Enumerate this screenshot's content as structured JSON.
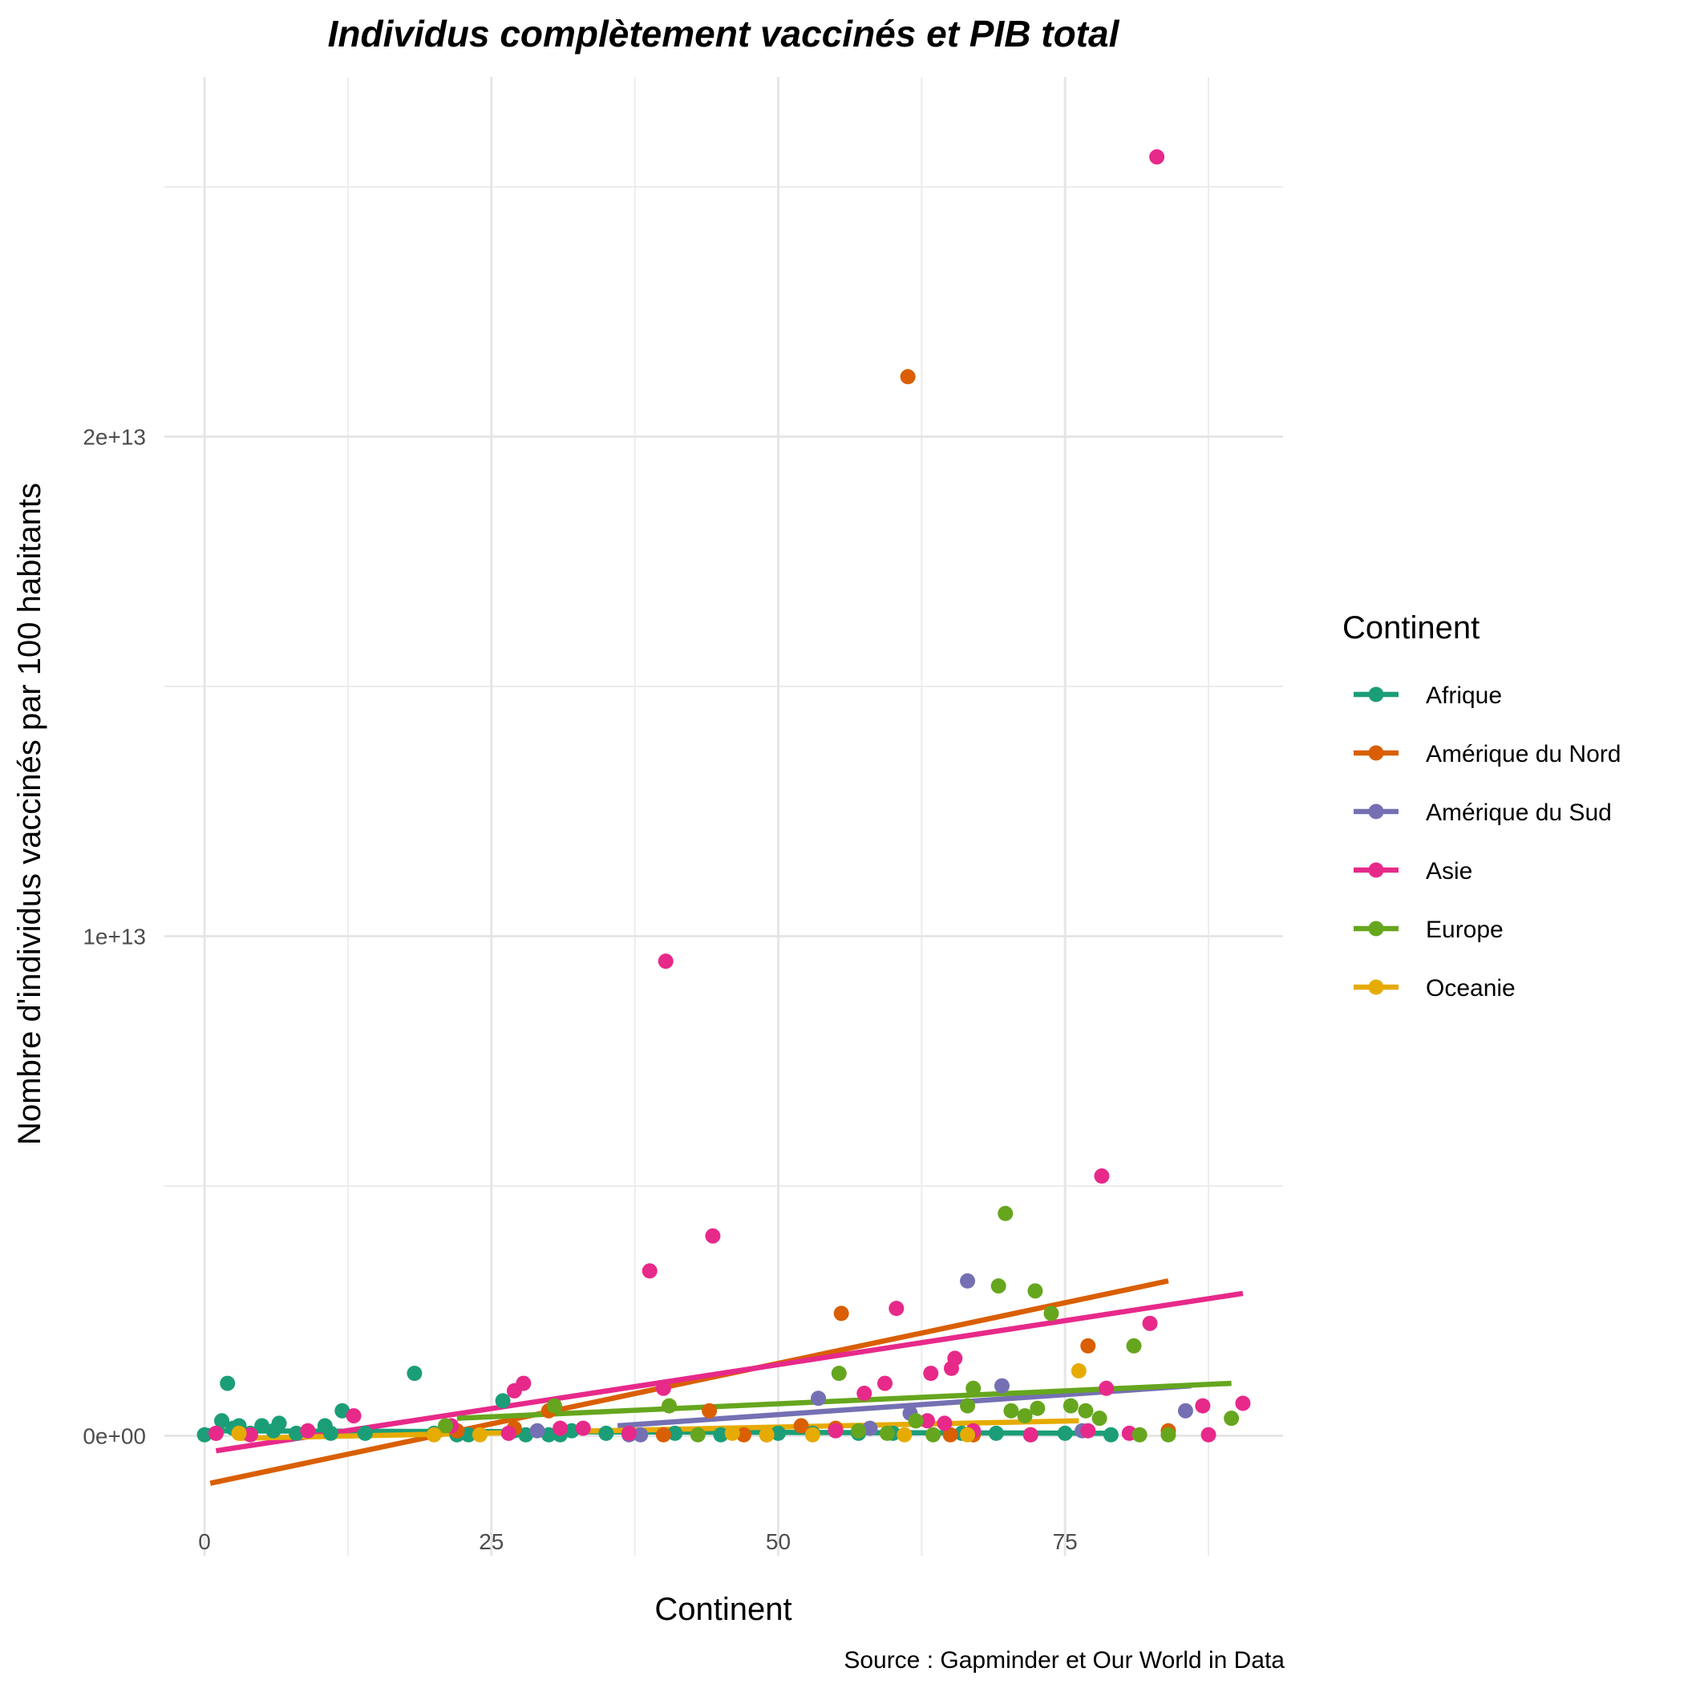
{
  "chart_data": {
    "type": "scatter",
    "title": "Individus complètement vaccinés et PIB total",
    "xlabel": "Continent",
    "ylabel": "Nombre d'individus vaccinés par 100 habitants",
    "caption": "Source : Gapminder et Our World in Data",
    "xlim": [
      -3.5,
      94
    ],
    "ylim": [
      -2400000000000.0,
      27200000000000.0
    ],
    "x_ticks": [
      0,
      25,
      50,
      75
    ],
    "x_tick_labels": [
      "0",
      "25",
      "50",
      "75"
    ],
    "y_ticks": [
      0,
      10000000000000.0,
      20000000000000.0
    ],
    "y_tick_labels": [
      "0e+00",
      "1e+13",
      "2e+13"
    ],
    "grid": true,
    "legend": {
      "title": "Continent",
      "position": "right"
    },
    "series": [
      {
        "name": "Afrique",
        "color": "#1b9e77",
        "points": [
          [
            0,
            20000000000.0
          ],
          [
            1,
            50000000000.0
          ],
          [
            1.5,
            300000000000.0
          ],
          [
            2,
            1050000000000.0
          ],
          [
            2.5,
            150000000000.0
          ],
          [
            3,
            200000000000.0
          ],
          [
            4,
            50000000000.0
          ],
          [
            5,
            200000000000.0
          ],
          [
            6,
            100000000000.0
          ],
          [
            6.5,
            250000000000.0
          ],
          [
            8,
            50000000000.0
          ],
          [
            10.5,
            200000000000.0
          ],
          [
            11,
            50000000000.0
          ],
          [
            12,
            500000000000.0
          ],
          [
            14,
            50000000000.0
          ],
          [
            18.3,
            1250000000000.0
          ],
          [
            20,
            50000000000.0
          ],
          [
            22,
            20000000000.0
          ],
          [
            23,
            20000000000.0
          ],
          [
            26,
            700000000000.0
          ],
          [
            27,
            100000000000.0
          ],
          [
            28,
            20000000000.0
          ],
          [
            30,
            20000000000.0
          ],
          [
            31,
            20000000000.0
          ],
          [
            32,
            100000000000.0
          ],
          [
            35,
            50000000000.0
          ],
          [
            37,
            50000000000.0
          ],
          [
            41,
            50000000000.0
          ],
          [
            45,
            20000000000.0
          ],
          [
            50,
            50000000000.0
          ],
          [
            53,
            50000000000.0
          ],
          [
            57,
            50000000000.0
          ],
          [
            60,
            50000000000.0
          ],
          [
            66,
            50000000000.0
          ],
          [
            69,
            50000000000.0
          ],
          [
            72,
            20000000000.0
          ],
          [
            75,
            50000000000.0
          ],
          [
            79,
            20000000000.0
          ]
        ],
        "trend": [
          [
            0,
            100000000000.0
          ],
          [
            79,
            50000000000.0
          ]
        ]
      },
      {
        "name": "Amérique du Nord",
        "color": "#d95f02",
        "points": [
          [
            22,
            100000000000.0
          ],
          [
            27,
            150000000000.0
          ],
          [
            30,
            500000000000.0
          ],
          [
            40,
            20000000000.0
          ],
          [
            44,
            500000000000.0
          ],
          [
            47,
            20000000000.0
          ],
          [
            49,
            20000000000.0
          ],
          [
            52,
            200000000000.0
          ],
          [
            55,
            150000000000.0
          ],
          [
            55.5,
            2450000000000.0
          ],
          [
            61.3,
            21200000000000.0
          ],
          [
            65,
            20000000000.0
          ],
          [
            67,
            20000000000.0
          ],
          [
            77,
            1800000000000.0
          ],
          [
            84,
            100000000000.0
          ]
        ],
        "trend": [
          [
            0.5,
            -950000000000.0
          ],
          [
            84,
            3100000000000.0
          ]
        ]
      },
      {
        "name": "Amérique du Sud",
        "color": "#7570b3",
        "points": [
          [
            29,
            100000000000.0
          ],
          [
            37,
            20000000000.0
          ],
          [
            38,
            20000000000.0
          ],
          [
            53.5,
            750000000000.0
          ],
          [
            58,
            150000000000.0
          ],
          [
            61.5,
            450000000000.0
          ],
          [
            66.5,
            3100000000000.0
          ],
          [
            69.5,
            1000000000000.0
          ],
          [
            76.5,
            100000000000.0
          ],
          [
            85.5,
            500000000000.0
          ]
        ],
        "trend": [
          [
            36,
            200000000000.0
          ],
          [
            86,
            1000000000000.0
          ]
        ]
      },
      {
        "name": "Asie",
        "color": "#e7298a",
        "points": [
          [
            1,
            50000000000.0
          ],
          [
            4,
            20000000000.0
          ],
          [
            9,
            100000000000.0
          ],
          [
            13,
            400000000000.0
          ],
          [
            21.5,
            200000000000.0
          ],
          [
            26.5,
            50000000000.0
          ],
          [
            27,
            900000000000.0
          ],
          [
            27.8,
            1050000000000.0
          ],
          [
            31,
            150000000000.0
          ],
          [
            33,
            150000000000.0
          ],
          [
            37,
            50000000000.0
          ],
          [
            38.8,
            3300000000000.0
          ],
          [
            40,
            950000000000.0
          ],
          [
            40.2,
            9500000000000.0
          ],
          [
            44.3,
            4000000000000.0
          ],
          [
            55,
            100000000000.0
          ],
          [
            57.5,
            850000000000.0
          ],
          [
            59.3,
            1050000000000.0
          ],
          [
            60.3,
            2550000000000.0
          ],
          [
            63,
            300000000000.0
          ],
          [
            63.3,
            1250000000000.0
          ],
          [
            64.5,
            250000000000.0
          ],
          [
            65.1,
            1350000000000.0
          ],
          [
            65.4,
            1550000000000.0
          ],
          [
            67,
            100000000000.0
          ],
          [
            72,
            20000000000.0
          ],
          [
            77,
            100000000000.0
          ],
          [
            78.2,
            5200000000000.0
          ],
          [
            78.6,
            950000000000.0
          ],
          [
            80.6,
            50000000000.0
          ],
          [
            82.4,
            2250000000000.0
          ],
          [
            83,
            25600000000000.0
          ],
          [
            87,
            600000000000.0
          ],
          [
            87.5,
            20000000000.0
          ],
          [
            90.5,
            650000000000.0
          ]
        ],
        "trend": [
          [
            1,
            -300000000000.0
          ],
          [
            90.5,
            2850000000000.0
          ]
        ]
      },
      {
        "name": "Europe",
        "color": "#66a61e",
        "points": [
          [
            21,
            200000000000.0
          ],
          [
            30.5,
            600000000000.0
          ],
          [
            40.5,
            600000000000.0
          ],
          [
            43,
            20000000000.0
          ],
          [
            55.3,
            1250000000000.0
          ],
          [
            57,
            100000000000.0
          ],
          [
            59.5,
            50000000000.0
          ],
          [
            62,
            300000000000.0
          ],
          [
            63.5,
            20000000000.0
          ],
          [
            66.5,
            600000000000.0
          ],
          [
            67,
            950000000000.0
          ],
          [
            69.2,
            3000000000000.0
          ],
          [
            69.8,
            4450000000000.0
          ],
          [
            70.3,
            500000000000.0
          ],
          [
            71.5,
            400000000000.0
          ],
          [
            72.4,
            2900000000000.0
          ],
          [
            72.6,
            550000000000.0
          ],
          [
            73.8,
            2450000000000.0
          ],
          [
            75.5,
            600000000000.0
          ],
          [
            76.8,
            500000000000.0
          ],
          [
            78,
            350000000000.0
          ],
          [
            81,
            1800000000000.0
          ],
          [
            81.5,
            20000000000.0
          ],
          [
            84,
            20000000000.0
          ],
          [
            89.5,
            350000000000.0
          ]
        ],
        "trend": [
          [
            22,
            350000000000.0
          ],
          [
            89.5,
            1050000000000.0
          ]
        ]
      },
      {
        "name": "Oceanie",
        "color": "#e6ab02",
        "points": [
          [
            3,
            50000000000.0
          ],
          [
            20,
            20000000000.0
          ],
          [
            24,
            20000000000.0
          ],
          [
            46,
            50000000000.0
          ],
          [
            49,
            20000000000.0
          ],
          [
            53,
            20000000000.0
          ],
          [
            61,
            20000000000.0
          ],
          [
            66.5,
            20000000000.0
          ],
          [
            76.2,
            1300000000000.0
          ]
        ],
        "trend": [
          [
            3,
            -50000000000.0
          ],
          [
            76.2,
            300000000000.0
          ]
        ]
      }
    ]
  }
}
